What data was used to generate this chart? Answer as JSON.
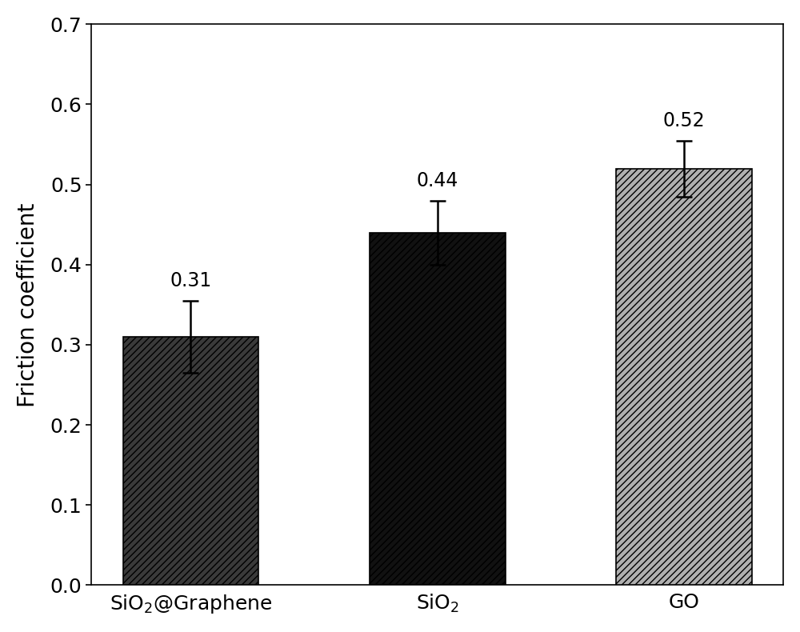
{
  "categories": [
    "SiO₂@Graphene",
    "SiO₂",
    "GO"
  ],
  "values": [
    0.31,
    0.44,
    0.52
  ],
  "errors": [
    0.045,
    0.04,
    0.035
  ],
  "bar_colors": [
    "#3a3a3a",
    "#111111",
    "#b0b0b0"
  ],
  "hatch_patterns": [
    "////",
    "////",
    "////"
  ],
  "value_labels": [
    "0.31",
    "0.44",
    "0.52"
  ],
  "ylabel": "Friction coefficient",
  "ylim": [
    0.0,
    0.7
  ],
  "yticks": [
    0.0,
    0.1,
    0.2,
    0.3,
    0.4,
    0.5,
    0.6,
    0.7
  ],
  "bar_width": 0.55,
  "label_fontsize": 20,
  "tick_fontsize": 18,
  "value_label_fontsize": 17,
  "background_color": "#ffffff",
  "figure_bg": "#ffffff"
}
